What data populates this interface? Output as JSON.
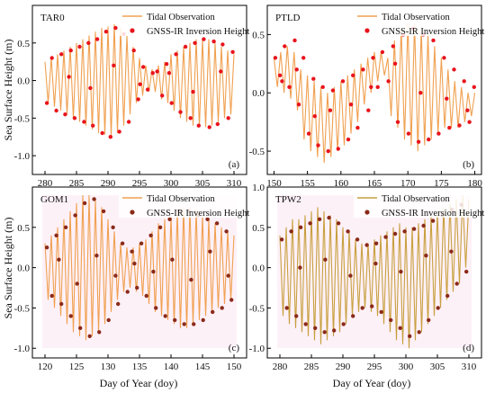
{
  "figure": {
    "ylabel": "Sea Surface Height (m)",
    "xlabel": "Day of Year (doy)"
  },
  "chart_data": [
    {
      "type": "line",
      "panel_label": "(a)",
      "station": "TAR0",
      "xlim": [
        278,
        312
      ],
      "ylim": [
        -1.25,
        1.0
      ],
      "x_ticks": [
        280,
        285,
        290,
        295,
        300,
        305,
        310
      ],
      "y_ticks": [
        -1.0,
        -0.5,
        0.0,
        0.5
      ],
      "legend": "top-right",
      "series": [
        {
          "name": "Tidal Observation",
          "kind": "line",
          "color": "#f0a050",
          "x": [
            280,
            280.5,
            281,
            281.5,
            282,
            282.5,
            283,
            283.5,
            284,
            284.5,
            285,
            285.5,
            286,
            286.5,
            287,
            287.5,
            288,
            288.5,
            289,
            289.5,
            290,
            290.5,
            291,
            291.5,
            292,
            292.5,
            293,
            293.5,
            294,
            294.5,
            295,
            295.5,
            296,
            296.5,
            297,
            297.5,
            298,
            298.5,
            299,
            299.5,
            300,
            300.5,
            301,
            301.5,
            302,
            302.5,
            303,
            303.5,
            304,
            304.5,
            305,
            305.5,
            306,
            306.5,
            307,
            307.5,
            308,
            308.5,
            309,
            309.5,
            310
          ],
          "y": [
            0.25,
            -0.3,
            0.3,
            -0.35,
            0.35,
            -0.4,
            0.4,
            -0.45,
            0.45,
            -0.5,
            0.5,
            -0.55,
            0.55,
            -0.6,
            0.6,
            -0.65,
            0.65,
            -0.7,
            0.7,
            -0.72,
            0.72,
            -0.75,
            0.75,
            -0.7,
            0.7,
            -0.6,
            0.6,
            -0.45,
            0.45,
            -0.3,
            0.3,
            -0.2,
            0.2,
            -0.15,
            0.15,
            -0.15,
            0.2,
            -0.25,
            0.25,
            -0.3,
            0.35,
            -0.4,
            0.4,
            -0.5,
            0.45,
            -0.55,
            0.5,
            -0.6,
            0.55,
            -0.62,
            0.55,
            -0.62,
            0.55,
            -0.6,
            0.5,
            -0.55,
            0.45,
            -0.5,
            0.4,
            -0.45,
            0.35
          ]
        },
        {
          "name": "GNSS-IR Inversion Height",
          "kind": "scatter",
          "color": "#e8141c",
          "x": [
            280.3,
            281.1,
            281.8,
            282.6,
            283.2,
            284.1,
            284.7,
            285.5,
            286.2,
            286.9,
            287.6,
            288.3,
            289.1,
            289.7,
            290.4,
            291.2,
            291.8,
            292.5,
            293.3,
            294.1,
            294.8,
            295.6,
            296.3,
            297.1,
            297.8,
            298.6,
            299.3,
            300.1,
            300.8,
            301.5,
            302.3,
            303.1,
            303.8,
            304.4,
            305.2,
            306.1,
            306.8,
            307.4,
            308.2,
            309.1,
            309.8,
            283.8,
            287.2,
            290.9,
            295.1,
            299.7,
            303.5,
            307.9
          ],
          "y": [
            -0.3,
            0.3,
            -0.4,
            0.35,
            -0.45,
            0.4,
            -0.5,
            0.45,
            -0.55,
            0.5,
            -0.6,
            0.55,
            -0.7,
            0.65,
            -0.75,
            0.7,
            -0.68,
            0.62,
            -0.55,
            0.4,
            -0.25,
            0.18,
            -0.12,
            0.1,
            0.12,
            -0.2,
            0.22,
            -0.3,
            0.35,
            -0.42,
            0.45,
            -0.5,
            0.5,
            -0.6,
            0.55,
            -0.62,
            0.52,
            -0.58,
            0.48,
            -0.5,
            0.38,
            0.05,
            -0.1,
            0.2,
            -0.05,
            0.1,
            -0.15,
            0.12
          ]
        }
      ]
    },
    {
      "type": "line",
      "panel_label": "(b)",
      "station": "PTLD",
      "xlim": [
        149,
        181
      ],
      "ylim": [
        -0.7,
        0.75
      ],
      "x_ticks": [
        150,
        155,
        160,
        165,
        170,
        175,
        180
      ],
      "y_ticks": [
        -0.5,
        0.0,
        0.5
      ],
      "legend": "top-right",
      "series": [
        {
          "name": "Tidal Observation",
          "kind": "line",
          "color": "#f0a050",
          "x": [
            150,
            150.5,
            151,
            151.5,
            152,
            152.5,
            153,
            153.5,
            154,
            154.5,
            155,
            155.5,
            156,
            156.5,
            157,
            157.5,
            158,
            158.5,
            159,
            159.5,
            160,
            160.5,
            161,
            161.5,
            162,
            162.5,
            163,
            163.5,
            164,
            164.5,
            165,
            165.5,
            166,
            166.5,
            167,
            167.5,
            168,
            168.5,
            169,
            169.5,
            170,
            170.5,
            171,
            171.5,
            172,
            172.5,
            173,
            173.5,
            174,
            174.5,
            175,
            175.5,
            176,
            176.5,
            177,
            177.5,
            178,
            178.5,
            179,
            179.5,
            180
          ],
          "y": [
            0.3,
            0.05,
            0.35,
            0.0,
            0.4,
            -0.05,
            0.35,
            -0.15,
            0.2,
            -0.4,
            0.15,
            -0.5,
            0.1,
            -0.55,
            0.05,
            -0.6,
            0.0,
            -0.55,
            0.05,
            -0.5,
            0.1,
            -0.45,
            0.15,
            -0.35,
            0.2,
            -0.25,
            0.25,
            -0.1,
            0.3,
            0.0,
            0.35,
            0.1,
            0.35,
            0.15,
            0.3,
            -0.2,
            0.45,
            -0.3,
            0.55,
            -0.4,
            0.6,
            -0.45,
            0.6,
            -0.5,
            0.55,
            -0.45,
            0.5,
            -0.4,
            0.4,
            -0.35,
            0.3,
            -0.3,
            0.2,
            -0.3,
            0.1,
            -0.3,
            0.05,
            -0.25,
            0.0,
            -0.2,
            0.0
          ]
        },
        {
          "name": "GNSS-IR Inversion Height",
          "kind": "scatter",
          "color": "#e8141c",
          "x": [
            150.2,
            150.9,
            151.6,
            152.3,
            153.1,
            153.7,
            154.4,
            155.2,
            155.9,
            156.6,
            157.3,
            158.1,
            158.8,
            159.6,
            160.3,
            161.1,
            161.8,
            162.5,
            163.3,
            164.1,
            164.8,
            165.5,
            166.2,
            167.1,
            167.8,
            168.5,
            169.3,
            170.1,
            170.8,
            171.6,
            172.3,
            173.1,
            173.8,
            174.6,
            175.4,
            176.2,
            176.9,
            177.7,
            178.4,
            179.2,
            179.9,
            151.2,
            153.4,
            156.1,
            158.4,
            161.5,
            164.5,
            168.1,
            171.9,
            175.8,
            178.9
          ],
          "y": [
            0.3,
            0.15,
            0.4,
            0.05,
            0.45,
            -0.1,
            0.3,
            -0.35,
            0.12,
            -0.45,
            0.05,
            -0.5,
            0.02,
            -0.48,
            0.1,
            -0.4,
            0.15,
            -0.3,
            0.2,
            -0.15,
            0.3,
            0.05,
            0.35,
            0.1,
            0.4,
            -0.25,
            0.5,
            -0.35,
            0.55,
            -0.42,
            0.5,
            -0.4,
            0.45,
            -0.35,
            0.3,
            -0.3,
            0.2,
            -0.28,
            0.1,
            -0.25,
            0.05,
            0.1,
            0.2,
            -0.2,
            -0.15,
            -0.1,
            0.05,
            0.25,
            0.0,
            -0.05,
            -0.15
          ]
        }
      ]
    },
    {
      "type": "line",
      "panel_label": "(c)",
      "station": "GOM1",
      "xlim": [
        118,
        152
      ],
      "ylim": [
        -1.12,
        1.0
      ],
      "x_ticks": [
        120,
        125,
        130,
        135,
        140,
        145,
        150
      ],
      "y_ticks": [
        -1.0,
        -0.5,
        0.0,
        0.5
      ],
      "legend": "top-right",
      "series": [
        {
          "name": "Tidal Observation",
          "kind": "line",
          "color": "#f0a050",
          "x": [
            120,
            120.5,
            121,
            121.5,
            122,
            122.5,
            123,
            123.5,
            124,
            124.5,
            125,
            125.5,
            126,
            126.5,
            127,
            127.5,
            128,
            128.5,
            129,
            129.5,
            130,
            130.5,
            131,
            131.5,
            132,
            132.5,
            133,
            133.5,
            134,
            134.5,
            135,
            135.5,
            136,
            136.5,
            137,
            137.5,
            138,
            138.5,
            139,
            139.5,
            140,
            140.5,
            141,
            141.5,
            142,
            142.5,
            143,
            143.5,
            144,
            144.5,
            145,
            145.5,
            146,
            146.5,
            147,
            147.5,
            148,
            148.5,
            149,
            149.5,
            150
          ],
          "y": [
            0.3,
            -0.4,
            0.4,
            -0.5,
            0.5,
            -0.6,
            0.6,
            -0.7,
            0.7,
            -0.8,
            0.8,
            -0.85,
            0.9,
            -0.9,
            0.9,
            -0.85,
            0.85,
            -0.8,
            0.75,
            -0.7,
            0.6,
            -0.55,
            0.45,
            -0.4,
            0.3,
            -0.3,
            0.25,
            -0.25,
            0.25,
            -0.3,
            0.3,
            -0.35,
            0.35,
            -0.45,
            0.45,
            -0.55,
            0.55,
            -0.6,
            0.6,
            -0.65,
            0.65,
            -0.7,
            0.7,
            -0.75,
            0.75,
            -0.75,
            0.75,
            -0.7,
            0.72,
            -0.65,
            0.65,
            -0.6,
            0.6,
            -0.55,
            0.55,
            -0.5,
            0.5,
            -0.45,
            0.45,
            -0.4,
            0.4
          ]
        },
        {
          "name": "GNSS-IR Inversion Height",
          "kind": "scatter",
          "color": "#8b2a1a",
          "x": [
            120.3,
            121.1,
            121.8,
            122.6,
            123.3,
            124.1,
            124.8,
            125.6,
            126.3,
            127.1,
            127.8,
            128.6,
            129.3,
            130.1,
            130.8,
            131.6,
            132.3,
            133.1,
            133.8,
            134.6,
            135.3,
            136.1,
            136.8,
            137.6,
            138.3,
            139.1,
            139.8,
            140.6,
            141.3,
            142.1,
            142.8,
            143.6,
            144.3,
            145.1,
            145.8,
            146.6,
            147.3,
            148.1,
            148.8,
            149.6,
            122.2,
            125.1,
            128.2,
            131.2,
            134.2,
            137.2,
            140.2,
            143.2,
            146.2,
            149.1
          ],
          "y": [
            0.25,
            -0.35,
            0.4,
            -0.45,
            0.5,
            -0.6,
            0.65,
            -0.75,
            0.8,
            -0.85,
            0.85,
            -0.8,
            0.7,
            -0.65,
            0.5,
            -0.45,
            0.3,
            -0.3,
            0.2,
            -0.25,
            0.3,
            -0.35,
            0.4,
            -0.5,
            0.5,
            -0.6,
            0.6,
            -0.65,
            0.7,
            -0.7,
            0.7,
            -0.7,
            0.65,
            -0.65,
            0.6,
            -0.55,
            0.55,
            -0.5,
            0.45,
            -0.4,
            0.1,
            -0.2,
            0.15,
            -0.1,
            0.05,
            -0.05,
            0.1,
            -0.15,
            0.2,
            -0.1
          ]
        }
      ]
    },
    {
      "type": "line",
      "panel_label": "(d)",
      "station": "TPW2",
      "xlim": [
        278,
        312
      ],
      "ylim": [
        -1.12,
        1.0
      ],
      "x_ticks": [
        280,
        285,
        290,
        295,
        300,
        305,
        310
      ],
      "y_ticks": [
        -1.0,
        -0.5,
        0.0,
        0.5,
        1.0
      ],
      "legend": "top-right",
      "series": [
        {
          "name": "Tidal Observation",
          "kind": "line",
          "color": "#c8a040",
          "x": [
            280,
            280.5,
            281,
            281.5,
            282,
            282.5,
            283,
            283.5,
            284,
            284.5,
            285,
            285.5,
            286,
            286.5,
            287,
            287.5,
            288,
            288.5,
            289,
            289.5,
            290,
            290.5,
            291,
            291.5,
            292,
            292.5,
            293,
            293.5,
            294,
            294.5,
            295,
            295.5,
            296,
            296.5,
            297,
            297.5,
            298,
            298.5,
            299,
            299.5,
            300,
            300.5,
            301,
            301.5,
            302,
            302.5,
            303,
            303.5,
            304,
            304.5,
            305,
            305.5,
            306,
            306.5,
            307,
            307.5,
            308,
            308.5,
            309,
            309.5,
            310
          ],
          "y": [
            0.4,
            -0.6,
            0.5,
            -0.7,
            0.6,
            -0.75,
            0.6,
            -0.8,
            0.65,
            -0.85,
            0.7,
            -0.9,
            0.75,
            -0.95,
            0.7,
            -0.9,
            0.65,
            -0.85,
            0.6,
            -0.8,
            0.5,
            -0.7,
            0.45,
            -0.6,
            0.35,
            -0.55,
            0.3,
            -0.5,
            0.3,
            -0.55,
            0.35,
            -0.6,
            0.4,
            -0.7,
            0.45,
            -0.8,
            0.5,
            -0.9,
            0.55,
            -0.95,
            0.5,
            -1.0,
            0.5,
            -0.9,
            0.55,
            -0.8,
            0.6,
            -0.7,
            0.65,
            -0.6,
            0.7,
            -0.5,
            0.75,
            -0.4,
            0.8,
            -0.3,
            0.85,
            -0.2,
            0.9,
            0.0,
            0.85
          ]
        },
        {
          "name": "GNSS-IR Inversion Height",
          "kind": "scatter",
          "color": "#8b2a1a",
          "x": [
            280.3,
            281.1,
            281.8,
            282.6,
            283.3,
            284.1,
            284.8,
            285.6,
            286.3,
            287.1,
            287.8,
            288.6,
            289.3,
            290.1,
            290.8,
            291.6,
            292.3,
            293.1,
            293.8,
            294.6,
            295.3,
            296.1,
            296.8,
            297.6,
            298.3,
            299.1,
            299.8,
            300.6,
            301.3,
            302.1,
            302.8,
            303.6,
            304.3,
            305.1,
            305.8,
            306.6,
            307.3,
            308.1,
            308.8,
            309.6,
            283.2,
            287.2,
            291.2,
            295.2,
            299.2,
            303.2,
            307.2
          ],
          "y": [
            0.35,
            -0.5,
            0.45,
            -0.6,
            0.5,
            -0.7,
            0.55,
            -0.75,
            0.6,
            -0.8,
            0.62,
            -0.78,
            0.55,
            -0.7,
            0.45,
            -0.6,
            0.35,
            -0.5,
            0.28,
            -0.48,
            0.3,
            -0.55,
            0.38,
            -0.65,
            0.42,
            -0.75,
            0.45,
            -0.85,
            0.48,
            -0.8,
            0.52,
            -0.65,
            0.58,
            -0.5,
            0.65,
            -0.35,
            0.72,
            -0.2,
            0.78,
            -0.05,
            0.0,
            0.1,
            -0.1,
            0.05,
            -0.05,
            0.15,
            0.2
          ]
        }
      ]
    }
  ]
}
